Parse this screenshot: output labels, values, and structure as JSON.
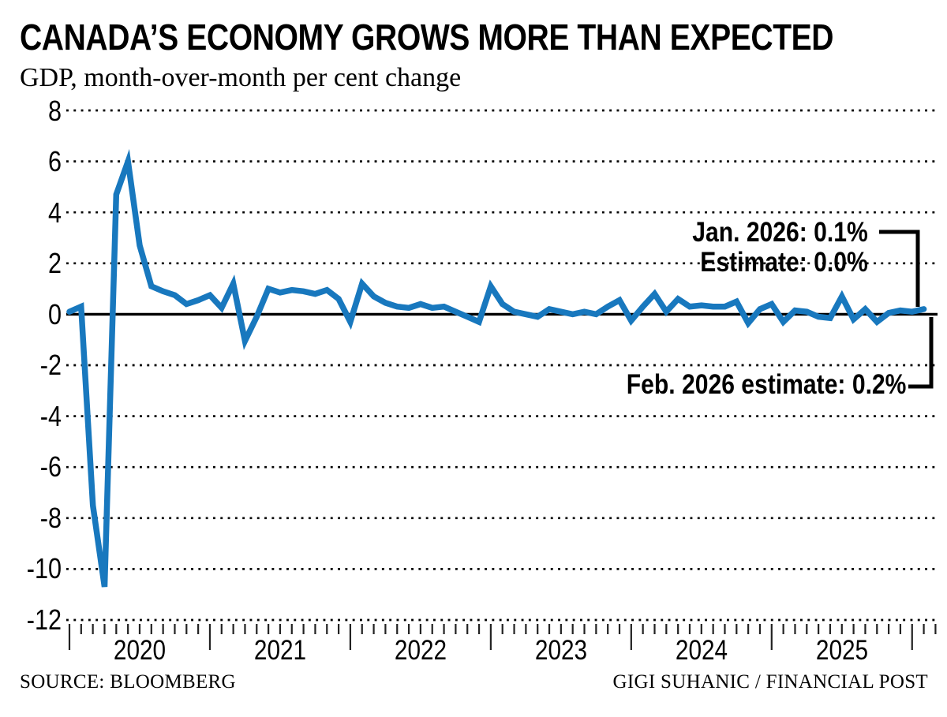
{
  "header": {
    "title": "CANADA’S ECONOMY GROWS MORE THAN EXPECTED",
    "subtitle": "GDP, month-over-month per cent change"
  },
  "footer": {
    "source": "SOURCE: BLOOMBERG",
    "credit": "GIGI SUHANIC / FINANCIAL POST"
  },
  "chart_data": {
    "type": "line",
    "title": "CANADA’S ECONOMY GROWS MORE THAN EXPECTED",
    "subtitle": "GDP, month-over-month per cent change",
    "xlabel": "",
    "ylabel": "GDP, month-over-month per cent change",
    "ylim": [
      -12,
      8
    ],
    "y_ticks": [
      8,
      6,
      4,
      2,
      0,
      -2,
      -4,
      -6,
      -8,
      -10,
      -12
    ],
    "x_tick_years": [
      "2020",
      "2021",
      "2022",
      "2023",
      "2024",
      "2025"
    ],
    "grid": "dotted horizontal, solid zero line",
    "legend": "none",
    "line_color": "#1878be",
    "series": [
      {
        "name": "GDP month-over-month % change",
        "months": [
          "2020-01",
          "2020-02",
          "2020-03",
          "2020-04",
          "2020-05",
          "2020-06",
          "2020-07",
          "2020-08",
          "2020-09",
          "2020-10",
          "2020-11",
          "2020-12",
          "2021-01",
          "2021-02",
          "2021-03",
          "2021-04",
          "2021-05",
          "2021-06",
          "2021-07",
          "2021-08",
          "2021-09",
          "2021-10",
          "2021-11",
          "2021-12",
          "2022-01",
          "2022-02",
          "2022-03",
          "2022-04",
          "2022-05",
          "2022-06",
          "2022-07",
          "2022-08",
          "2022-09",
          "2022-10",
          "2022-11",
          "2022-12",
          "2023-01",
          "2023-02",
          "2023-03",
          "2023-04",
          "2023-05",
          "2023-06",
          "2023-07",
          "2023-08",
          "2023-09",
          "2023-10",
          "2023-11",
          "2023-12",
          "2024-01",
          "2024-02",
          "2024-03",
          "2024-04",
          "2024-05",
          "2024-06",
          "2024-07",
          "2024-08",
          "2024-09",
          "2024-10",
          "2024-11",
          "2024-12",
          "2025-01",
          "2025-02",
          "2025-03",
          "2025-04",
          "2025-05",
          "2025-06",
          "2025-07",
          "2025-08",
          "2025-09",
          "2025-10",
          "2025-11",
          "2025-12",
          "2026-01",
          "2026-02"
        ],
        "values": [
          0.1,
          0.3,
          -7.5,
          -10.7,
          4.7,
          6.0,
          2.7,
          1.1,
          0.9,
          0.75,
          0.4,
          0.55,
          0.75,
          0.25,
          1.2,
          -1.05,
          -0.1,
          1.0,
          0.85,
          0.95,
          0.9,
          0.8,
          0.95,
          0.6,
          -0.3,
          1.2,
          0.7,
          0.45,
          0.3,
          0.25,
          0.4,
          0.25,
          0.3,
          0.1,
          -0.1,
          -0.3,
          1.1,
          0.4,
          0.1,
          0.0,
          -0.1,
          0.2,
          0.1,
          0.0,
          0.1,
          0.0,
          0.3,
          0.55,
          -0.25,
          0.3,
          0.8,
          0.1,
          0.6,
          0.3,
          0.35,
          0.3,
          0.3,
          0.5,
          -0.35,
          0.2,
          0.4,
          -0.3,
          0.15,
          0.1,
          -0.1,
          -0.15,
          0.7,
          -0.2,
          0.2,
          -0.3,
          0.05,
          0.15,
          0.1,
          0.2
        ],
        "last_point_is_estimate": true
      }
    ],
    "annotations": [
      {
        "id": "jan-line1",
        "text": "Jan. 2026: 0.1%"
      },
      {
        "id": "jan-line2",
        "text": "Estimate: 0.0%"
      },
      {
        "id": "feb",
        "text": "Feb. 2026 estimate: 0.2%"
      }
    ]
  }
}
